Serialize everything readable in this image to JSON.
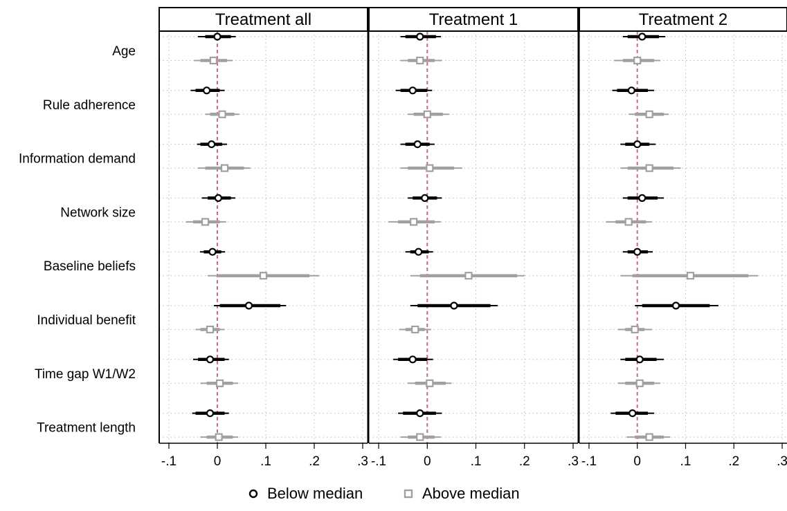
{
  "chart_data": {
    "type": "coefficient-plot",
    "panels": [
      "Treatment all",
      "Treatment 1",
      "Treatment 2"
    ],
    "rows": [
      "Age",
      "Rule adherence",
      "Information demand",
      "Network size",
      "Baseline beliefs",
      "Individual benefit",
      "Time gap W1/W2",
      "Treatment length"
    ],
    "x_ticks": [
      -0.1,
      0,
      0.1,
      0.2,
      0.3
    ],
    "x_tick_labels": [
      "-.1",
      "0",
      ".1",
      ".2",
      ".3"
    ],
    "xlim": [
      -0.12,
      0.31
    ],
    "reference_line": 0,
    "grid": true,
    "legend_position": "bottom",
    "series": [
      {
        "name": "Below median",
        "marker": "circle",
        "color": "#000000",
        "estimates": [
          [
            {
              "est": 0.0,
              "ci90": [
                -0.025,
                0.028
              ],
              "ci95": [
                -0.04,
                0.038
              ]
            },
            {
              "est": -0.022,
              "ci90": [
                -0.045,
                0.005
              ],
              "ci95": [
                -0.055,
                0.015
              ]
            },
            {
              "est": -0.012,
              "ci90": [
                -0.035,
                0.01
              ],
              "ci95": [
                -0.042,
                0.02
              ]
            },
            {
              "est": 0.002,
              "ci90": [
                -0.02,
                0.028
              ],
              "ci95": [
                -0.032,
                0.037
              ]
            },
            {
              "est": -0.01,
              "ci90": [
                -0.028,
                0.008
              ],
              "ci95": [
                -0.036,
                0.016
              ]
            },
            {
              "est": 0.065,
              "ci90": [
                0.005,
                0.13
              ],
              "ci95": [
                -0.007,
                0.142
              ]
            },
            {
              "est": -0.015,
              "ci90": [
                -0.04,
                0.015
              ],
              "ci95": [
                -0.05,
                0.024
              ]
            },
            {
              "est": -0.015,
              "ci90": [
                -0.045,
                0.015
              ],
              "ci95": [
                -0.052,
                0.024
              ]
            }
          ],
          [
            {
              "est": -0.015,
              "ci90": [
                -0.045,
                0.018
              ],
              "ci95": [
                -0.055,
                0.028
              ]
            },
            {
              "est": -0.03,
              "ci90": [
                -0.055,
                0.0
              ],
              "ci95": [
                -0.065,
                0.01
              ]
            },
            {
              "est": -0.02,
              "ci90": [
                -0.045,
                0.005
              ],
              "ci95": [
                -0.055,
                0.015
              ]
            },
            {
              "est": -0.005,
              "ci90": [
                -0.03,
                0.02
              ],
              "ci95": [
                -0.04,
                0.03
              ]
            },
            {
              "est": -0.018,
              "ci90": [
                -0.035,
                0.003
              ],
              "ci95": [
                -0.045,
                0.012
              ]
            },
            {
              "est": 0.055,
              "ci90": [
                -0.02,
                0.13
              ],
              "ci95": [
                -0.035,
                0.145
              ]
            },
            {
              "est": -0.03,
              "ci90": [
                -0.06,
                0.0
              ],
              "ci95": [
                -0.07,
                0.012
              ]
            },
            {
              "est": -0.015,
              "ci90": [
                -0.05,
                0.018
              ],
              "ci95": [
                -0.06,
                0.03
              ]
            }
          ],
          [
            {
              "est": 0.01,
              "ci90": [
                -0.02,
                0.045
              ],
              "ci95": [
                -0.03,
                0.058
              ]
            },
            {
              "est": -0.012,
              "ci90": [
                -0.042,
                0.022
              ],
              "ci95": [
                -0.052,
                0.035
              ]
            },
            {
              "est": 0.0,
              "ci90": [
                -0.025,
                0.025
              ],
              "ci95": [
                -0.035,
                0.038
              ]
            },
            {
              "est": 0.01,
              "ci90": [
                -0.02,
                0.042
              ],
              "ci95": [
                -0.03,
                0.055
              ]
            },
            {
              "est": 0.0,
              "ci90": [
                -0.02,
                0.022
              ],
              "ci95": [
                -0.03,
                0.032
              ]
            },
            {
              "est": 0.08,
              "ci90": [
                0.01,
                0.15
              ],
              "ci95": [
                -0.005,
                0.168
              ]
            },
            {
              "est": 0.005,
              "ci90": [
                -0.025,
                0.04
              ],
              "ci95": [
                -0.035,
                0.055
              ]
            },
            {
              "est": -0.01,
              "ci90": [
                -0.045,
                0.022
              ],
              "ci95": [
                -0.055,
                0.035
              ]
            }
          ]
        ]
      },
      {
        "name": "Above median",
        "marker": "square",
        "color": "#a0a0a0",
        "estimates": [
          [
            {
              "est": -0.008,
              "ci90": [
                -0.035,
                0.02
              ],
              "ci95": [
                -0.048,
                0.032
              ]
            },
            {
              "est": 0.01,
              "ci90": [
                -0.015,
                0.035
              ],
              "ci95": [
                -0.025,
                0.045
              ]
            },
            {
              "est": 0.015,
              "ci90": [
                -0.025,
                0.055
              ],
              "ci95": [
                -0.04,
                0.068
              ]
            },
            {
              "est": -0.025,
              "ci90": [
                -0.05,
                0.005
              ],
              "ci95": [
                -0.065,
                0.018
              ]
            },
            {
              "est": 0.095,
              "ci90": [
                0.0,
                0.19
              ],
              "ci95": [
                -0.02,
                0.21
              ]
            },
            {
              "est": -0.015,
              "ci90": [
                -0.035,
                0.005
              ],
              "ci95": [
                -0.045,
                0.015
              ]
            },
            {
              "est": 0.005,
              "ci90": [
                -0.022,
                0.032
              ],
              "ci95": [
                -0.035,
                0.043
              ]
            },
            {
              "est": 0.003,
              "ci90": [
                -0.022,
                0.032
              ],
              "ci95": [
                -0.035,
                0.043
              ]
            }
          ],
          [
            {
              "est": -0.015,
              "ci90": [
                -0.04,
                0.015
              ],
              "ci95": [
                -0.055,
                0.03
              ]
            },
            {
              "est": 0.0,
              "ci90": [
                -0.028,
                0.032
              ],
              "ci95": [
                -0.04,
                0.045
              ]
            },
            {
              "est": 0.005,
              "ci90": [
                -0.04,
                0.055
              ],
              "ci95": [
                -0.055,
                0.072
              ]
            },
            {
              "est": -0.028,
              "ci90": [
                -0.06,
                0.015
              ],
              "ci95": [
                -0.08,
                0.028
              ]
            },
            {
              "est": 0.085,
              "ci90": [
                -0.015,
                0.185
              ],
              "ci95": [
                -0.035,
                0.2
              ]
            },
            {
              "est": -0.025,
              "ci90": [
                -0.045,
                -0.005
              ],
              "ci95": [
                -0.058,
                0.008
              ]
            },
            {
              "est": 0.005,
              "ci90": [
                -0.025,
                0.038
              ],
              "ci95": [
                -0.04,
                0.05
              ]
            },
            {
              "est": -0.015,
              "ci90": [
                -0.04,
                0.015
              ],
              "ci95": [
                -0.055,
                0.028
              ]
            }
          ],
          [
            {
              "est": 0.0,
              "ci90": [
                -0.03,
                0.035
              ],
              "ci95": [
                -0.048,
                0.048
              ]
            },
            {
              "est": 0.025,
              "ci90": [
                -0.005,
                0.055
              ],
              "ci95": [
                -0.018,
                0.065
              ]
            },
            {
              "est": 0.025,
              "ci90": [
                -0.02,
                0.075
              ],
              "ci95": [
                -0.035,
                0.09
              ]
            },
            {
              "est": -0.018,
              "ci90": [
                -0.045,
                0.018
              ],
              "ci95": [
                -0.065,
                0.03
              ]
            },
            {
              "est": 0.11,
              "ci90": [
                -0.01,
                0.23
              ],
              "ci95": [
                -0.035,
                0.25
              ]
            },
            {
              "est": -0.005,
              "ci90": [
                -0.025,
                0.015
              ],
              "ci95": [
                -0.04,
                0.03
              ]
            },
            {
              "est": 0.005,
              "ci90": [
                -0.025,
                0.035
              ],
              "ci95": [
                -0.04,
                0.048
              ]
            },
            {
              "est": 0.025,
              "ci90": [
                -0.005,
                0.055
              ],
              "ci95": [
                -0.022,
                0.068
              ]
            }
          ]
        ]
      }
    ]
  }
}
